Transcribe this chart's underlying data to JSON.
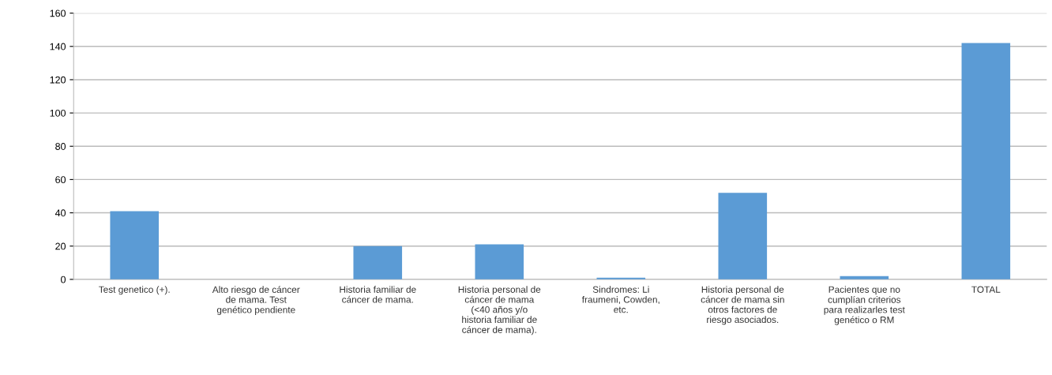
{
  "chart_data": {
    "type": "bar",
    "categories": [
      "Test genetico (+).",
      "Alto riesgo de cáncer\nde mama. Test\ngenético pendiente",
      "Historia familiar de\ncáncer de mama.",
      "Historia personal de\ncáncer de mama\n(<40 años y/o\nhistoria familiar de\ncáncer de mama).",
      "Sindromes: Li\nfraumeni, Cowden,\netc.",
      "Historia personal de\ncáncer de mama sin\notros factores de\nriesgo asociados.",
      "Pacientes que no\ncumplían criterios\npara realizarles test\ngenético o RM",
      "TOTAL"
    ],
    "values": [
      41,
      0,
      20,
      21,
      1,
      52,
      2,
      142
    ],
    "color": "#5b9bd5",
    "ylim": [
      0,
      160
    ],
    "yticks": [
      0,
      20,
      40,
      60,
      80,
      100,
      120,
      140,
      160
    ],
    "grid": "y"
  }
}
